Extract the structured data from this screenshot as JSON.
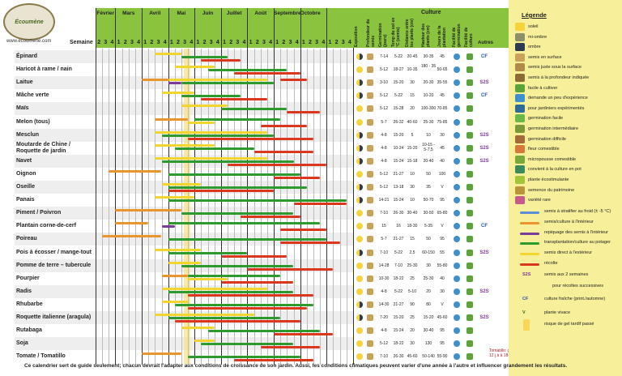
{
  "header": {
    "logo_text": "Écoumène",
    "site": "www.ecoumene.com",
    "semaine_label": "Semaine",
    "culture_title": "Culture",
    "months": [
      "Février",
      "Mars",
      "Avril",
      "Mai",
      "Juin",
      "Juillet",
      "Août",
      "Septembre",
      "Octobre"
    ],
    "week_numbers": [
      "2",
      "3",
      "4",
      "1",
      "2",
      "3",
      "4",
      "1",
      "2",
      "3",
      "4",
      "1",
      "2",
      "3",
      "4",
      "1",
      "2",
      "3",
      "4",
      "1",
      "2",
      "3",
      "4",
      "1",
      "2",
      "3",
      "4",
      "1",
      "2",
      "3",
      "4",
      "1",
      "2",
      "3",
      "4",
      "1",
      "2",
      "3",
      "4"
    ],
    "col_headers": [
      "Exposition",
      "Profondeur du semis",
      "Germination (jours)",
      "Temp du sol en °C (semis)",
      "Distance entre les plants (cm)",
      "Hauteur des plants (cm)",
      "Jours de la plantation",
      "Facilité de germination",
      "Facilité de culture",
      "Autres"
    ]
  },
  "rows": [
    {
      "name": "Épinard",
      "v": [
        "7-14",
        "5-22",
        "20-45",
        "30-35",
        "45"
      ],
      "note": "CF"
    },
    {
      "name": "Haricot à rame / nain",
      "v": [
        "5-12",
        "18-27",
        "10-35",
        "180 - 35",
        "50-65"
      ],
      "note": ""
    },
    {
      "name": "Laitue",
      "v": [
        "3-10",
        "15-20",
        "30",
        "20-30",
        "35-55"
      ],
      "note": "S2S"
    },
    {
      "name": "Mâche verte",
      "v": [
        "5-12",
        "5-22",
        "15",
        "10-20",
        "45"
      ],
      "note": "CF"
    },
    {
      "name": "Maïs",
      "v": [
        "5-12",
        "15-28",
        "20",
        "100-300",
        "70-85"
      ],
      "note": ""
    },
    {
      "name": "Melon (tous)",
      "v": [
        "5-7",
        "26-32",
        "40-60",
        "25-30",
        "75-85"
      ],
      "note": ""
    },
    {
      "name": "Mesclun",
      "v": [
        "4-8",
        "15-20",
        "5",
        "10",
        "30"
      ],
      "note": "S2S"
    },
    {
      "name": "Moutarde de Chine / Roquette de jardin",
      "v": [
        "4-8",
        "10-24",
        "15-20",
        "10-15 - 5-7,5",
        "45"
      ],
      "note": "S2S"
    },
    {
      "name": "Navet",
      "v": [
        "4-8",
        "15-24",
        "15-18",
        "20-40",
        "40"
      ],
      "note": "S2S"
    },
    {
      "name": "Oignon",
      "v": [
        "5-12",
        "21-27",
        "10",
        "50",
        "100"
      ],
      "note": ""
    },
    {
      "name": "Oseille",
      "v": [
        "5-12",
        "13-18",
        "30",
        "35",
        "V"
      ],
      "note": ""
    },
    {
      "name": "Panais",
      "v": [
        "14-21",
        "15-24",
        "10",
        "50-70",
        "95"
      ],
      "note": ""
    },
    {
      "name": "Piment / Poivron",
      "v": [
        "7-10",
        "26-30",
        "30-40",
        "30-50",
        "65-80"
      ],
      "note": ""
    },
    {
      "name": "Plantain corne-de-cerf",
      "v": [
        "15",
        "16",
        "18-30",
        "5-35",
        "V"
      ],
      "note": "CF"
    },
    {
      "name": "Poireau",
      "v": [
        "5-7",
        "21-27",
        "15",
        "50",
        "95"
      ],
      "note": ""
    },
    {
      "name": "Pois à écosser / mange-tout",
      "v": [
        "7-10",
        "5-22",
        "2,5",
        "60-150",
        "55"
      ],
      "note": "S2S"
    },
    {
      "name": "Pomme de terre – tubercule",
      "v": [
        "14-28",
        "7-10",
        "25-30",
        "30",
        "55-80"
      ],
      "note": ""
    },
    {
      "name": "Pourpier",
      "v": [
        "10-30",
        "18-22",
        "25",
        "25-30",
        "40"
      ],
      "note": ""
    },
    {
      "name": "Radis",
      "v": [
        "4-8",
        "5-22",
        "5-10",
        "20",
        "30"
      ],
      "note": "S2S"
    },
    {
      "name": "Rhubarbe",
      "v": [
        "14-30",
        "21-27",
        "90",
        "80",
        "V"
      ],
      "note": ""
    },
    {
      "name": "Roquette italienne (aragula)",
      "v": [
        "7-20",
        "15-20",
        "25",
        "15-20",
        "45-60"
      ],
      "note": "S2S"
    },
    {
      "name": "Rutabaga",
      "v": [
        "4-8",
        "15-24",
        "20",
        "30-40",
        "95"
      ],
      "note": ""
    },
    {
      "name": "Soja",
      "v": [
        "5-12",
        "18-22",
        "30",
        "130",
        "95"
      ],
      "note": ""
    },
    {
      "name": "Tomate / Tomatillo",
      "v": [
        "7-10",
        "26-30",
        "45-60",
        "50-140",
        "55-90"
      ],
      "note": ""
    }
  ],
  "side_note": "Tomatillo: germe en 7-12 j à à 18-22 °C",
  "legend": {
    "title": "Légende",
    "icons": [
      "soleil",
      "mi-ombre",
      "ombre",
      "semis en surface",
      "semis juste sous la surface",
      "semis à la profondeur indiquée",
      "facile à cultiver",
      "demande un peu d'expérience",
      "pour jardiniers expérimentés",
      "germination facile",
      "germination intermédiaire",
      "germination difficile",
      "fleur comestible",
      "micropousse comestible",
      "convient à la culture en pot",
      "plante écostimulante",
      "semence du patrimoine",
      "variété rare"
    ],
    "lines": [
      "semis à stratifier au froid (± -5 °C)",
      "semis/culture à l'intérieur",
      "repiquage des semis à l'intérieur",
      "transplantation/culture au potager",
      "semis direct à l'extérieur",
      "récolte"
    ],
    "extras": [
      "semis aux 2 semaines",
      "pour récoltes successives",
      "culture fraîche (print./automne)",
      "plante vivace",
      "risque de gel tardif passé"
    ],
    "extra_marks": [
      "S2S",
      "CF",
      "V"
    ]
  },
  "footer": "Ce calendrier sert de guide seulement; chacun devrait l'adapter aux conditions de croissance de son jardin. Aussi, les conditions climatiques peuvent varier d'une année à l'autre et influencer grandement les résultats.",
  "colors": {
    "cold": "#5b8ed6",
    "indoor": "#e8952e",
    "repiquage": "#7a3b9b",
    "transplant": "#2e9a2e",
    "direct": "#f2d52e",
    "harvest": "#d9381e",
    "header_green": "#8ac43f",
    "legend_bg": "#f7ef9a"
  }
}
